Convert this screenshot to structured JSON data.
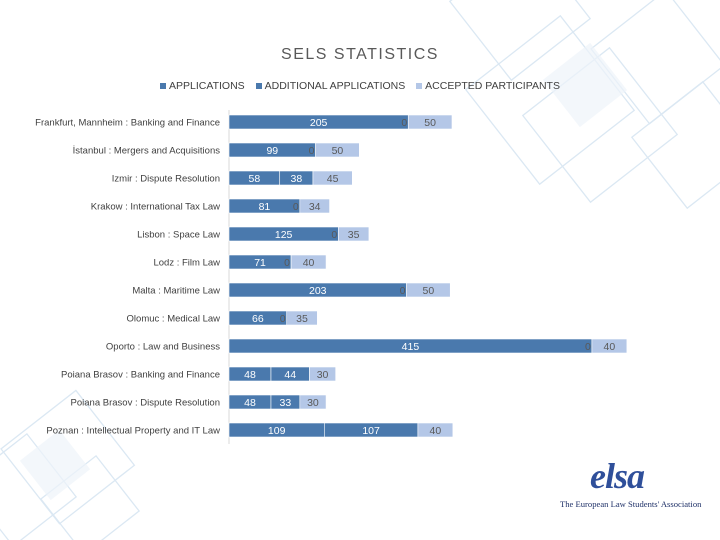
{
  "chart_data": {
    "type": "bar",
    "orientation": "horizontal",
    "stacked": true,
    "title": "SELS STATISTICS",
    "legend_position": "top",
    "categories": [
      "Frankfurt, Mannheim : Banking and Finance",
      "İstanbul : Mergers and Acquisitions",
      "Izmir : Dispute Resolution",
      "Krakow : International Tax Law",
      "Lisbon : Space Law",
      "Lodz : Film Law",
      "Malta : Maritime Law",
      "Olomuc : Medical Law",
      "Oporto : Law and Business",
      "Poiana Brasov : Banking and Finance",
      "Poiana Brasov : Dispute Resolution",
      "Poznan : Intellectual Property and IT Law"
    ],
    "series": [
      {
        "name": "APPLICATIONS",
        "color": "#4a79ad",
        "values": [
          205,
          99,
          58,
          81,
          125,
          71,
          203,
          66,
          415,
          48,
          48,
          109
        ],
        "labels": [
          "205",
          "99",
          "58",
          "81",
          "125",
          "71",
          "203",
          "66",
          "415",
          "48",
          "48",
          "109"
        ]
      },
      {
        "name": "ADDITIONAL APPLICATIONS",
        "color": "#4a79ad",
        "values": [
          0,
          0,
          38,
          0,
          0,
          0,
          0,
          0,
          0,
          44,
          33,
          107
        ],
        "labels": [
          "0",
          "0",
          "38",
          "0",
          "0",
          "0",
          "0",
          "0",
          "0",
          "44",
          "33",
          "107"
        ]
      },
      {
        "name": "ACCEPTED PARTICIPANTS",
        "color": "#b4c7e7",
        "values": [
          50,
          50,
          45,
          34,
          35,
          40,
          50,
          35,
          40,
          30,
          30,
          40
        ],
        "labels": [
          "50",
          "50",
          "45",
          "34",
          "35",
          "40",
          "50",
          "35",
          "40",
          "30",
          "30",
          "40"
        ]
      }
    ],
    "xlim": [
      0,
      470
    ],
    "grid": false
  },
  "logo": {
    "wordmark": "elsa",
    "tagline": "The European Law Students' Association"
  }
}
